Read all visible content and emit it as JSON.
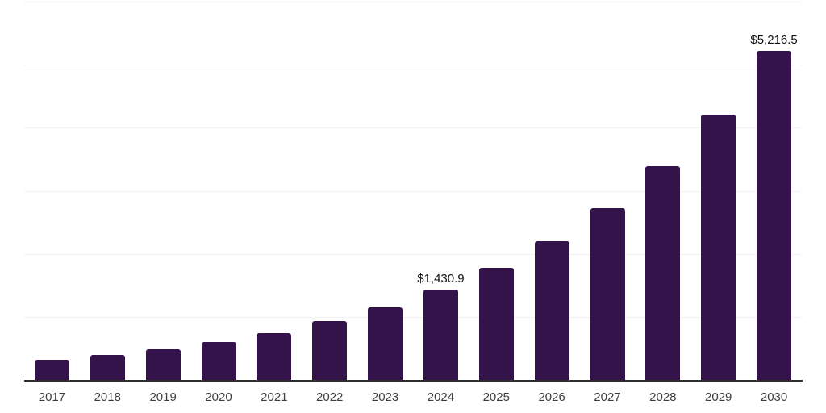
{
  "chart_data": {
    "type": "bar",
    "categories": [
      "2017",
      "2018",
      "2019",
      "2020",
      "2021",
      "2022",
      "2023",
      "2024",
      "2025",
      "2026",
      "2027",
      "2028",
      "2029",
      "2030"
    ],
    "values": [
      320,
      395,
      485,
      600,
      745,
      930,
      1145,
      1430.9,
      1775,
      2200,
      2730,
      3390,
      4205,
      5216.5
    ],
    "data_labels": {
      "2024": "$1,430.9",
      "2030": "$5,216.5"
    },
    "title": "",
    "xlabel": "",
    "ylabel": "",
    "ylim": [
      0,
      6000
    ],
    "gridline_step": 1000,
    "grid": "horizontal-only",
    "legend": "none",
    "y_tick_labels_visible": false,
    "colors": {
      "bar": "#34124A",
      "axis_line": "#2d2d2d",
      "gridline": "#f1f1f1",
      "x_tick_label": "#3e3e3e",
      "data_label": "#111111",
      "background": "#ffffff"
    }
  }
}
